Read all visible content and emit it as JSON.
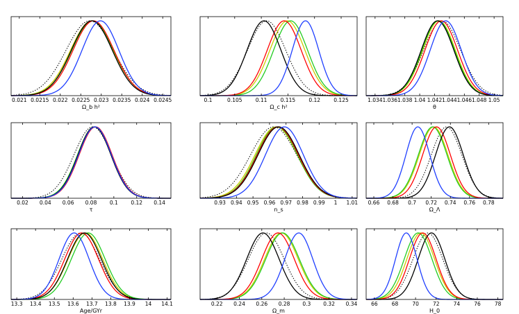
{
  "colors": {
    "blue": "#1f3fff",
    "black": "#000000",
    "red": "#ff0000",
    "green": "#22cc22",
    "yellow": "#cccc00",
    "dotted": "#000000"
  },
  "chart_data": [
    {
      "type": "line",
      "xlabel": "Ω_b h²",
      "xlim": [
        0.0208,
        0.0247
      ],
      "xticks": [
        0.021,
        0.0215,
        0.022,
        0.0225,
        0.023,
        0.0235,
        0.024,
        0.0245
      ],
      "tick_labels": [
        "0.021",
        "0.0215",
        "0.022",
        "0.0225",
        "0.023",
        "0.0235",
        "0.024",
        "0.0245"
      ],
      "series": [
        {
          "name": "blue",
          "mu": 0.02298,
          "sigma": 0.00045
        },
        {
          "name": "black",
          "mu": 0.02277,
          "sigma": 0.0005
        },
        {
          "name": "red",
          "mu": 0.02281,
          "sigma": 0.0005
        },
        {
          "name": "green",
          "mu": 0.02279,
          "sigma": 0.00051
        },
        {
          "name": "yellow",
          "mu": 0.02277,
          "sigma": 0.00052
        },
        {
          "name": "dotted",
          "mu": 0.02272,
          "sigma": 0.00058
        }
      ]
    },
    {
      "type": "line",
      "xlabel": "Ω_c h²",
      "xlim": [
        0.0985,
        0.128
      ],
      "xticks": [
        0.1,
        0.105,
        0.11,
        0.115,
        0.12,
        0.125
      ],
      "tick_labels": [
        "0.1",
        "0.105",
        "0.11",
        "0.115",
        "0.12",
        "0.125"
      ],
      "series": [
        {
          "name": "blue",
          "mu": 0.1183,
          "sigma": 0.0025
        },
        {
          "name": "black",
          "mu": 0.1105,
          "sigma": 0.0032
        },
        {
          "name": "red",
          "mu": 0.1143,
          "sigma": 0.0032
        },
        {
          "name": "green",
          "mu": 0.1155,
          "sigma": 0.0032
        },
        {
          "name": "yellow",
          "mu": 0.1149,
          "sigma": 0.0033
        },
        {
          "name": "dotted",
          "mu": 0.111,
          "sigma": 0.0036
        }
      ]
    },
    {
      "type": "line",
      "xlabel": "θ",
      "xlim": [
        1.0328,
        1.0512
      ],
      "xticks": [
        1.034,
        1.036,
        1.038,
        1.04,
        1.042,
        1.044,
        1.046,
        1.048,
        1.05
      ],
      "tick_labels": [
        "1.034",
        "1.036",
        "1.038",
        "1.04",
        "1.042",
        "1.044",
        "1.046",
        "1.048",
        "1.05"
      ],
      "series": [
        {
          "name": "blue",
          "mu": 1.0435,
          "sigma": 0.0021
        },
        {
          "name": "black",
          "mu": 1.0424,
          "sigma": 0.0022
        },
        {
          "name": "red",
          "mu": 1.0429,
          "sigma": 0.0022
        },
        {
          "name": "green",
          "mu": 1.0425,
          "sigma": 0.0022
        },
        {
          "name": "yellow",
          "mu": 1.0426,
          "sigma": 0.0022
        },
        {
          "name": "dotted",
          "mu": 1.043,
          "sigma": 0.0025
        }
      ]
    },
    {
      "type": "line",
      "xlabel": "τ",
      "xlim": [
        0.01,
        0.15
      ],
      "xticks": [
        0.02,
        0.04,
        0.06,
        0.08,
        0.1,
        0.12,
        0.14
      ],
      "tick_labels": [
        "0.02",
        "0.04",
        "0.06",
        "0.08",
        "0.1",
        "0.12",
        "0.14"
      ],
      "series": [
        {
          "name": "blue",
          "mu": 0.0835,
          "sigma": 0.0145
        },
        {
          "name": "black",
          "mu": 0.083,
          "sigma": 0.0145
        },
        {
          "name": "red",
          "mu": 0.084,
          "sigma": 0.0145
        },
        {
          "name": "green",
          "mu": 0.083,
          "sigma": 0.0148
        },
        {
          "name": "yellow",
          "mu": 0.083,
          "sigma": 0.0148
        },
        {
          "name": "dotted",
          "mu": 0.0815,
          "sigma": 0.0165
        }
      ]
    },
    {
      "type": "line",
      "xlabel": "n_s",
      "xlim": [
        0.918,
        1.013
      ],
      "xticks": [
        0.93,
        0.94,
        0.95,
        0.96,
        0.97,
        0.98,
        0.99,
        1,
        1.01
      ],
      "tick_labels": [
        "0.93",
        "0.94",
        "0.95",
        "0.96",
        "0.97",
        "0.98",
        "0.99",
        "1",
        "1.01"
      ],
      "series": [
        {
          "name": "blue",
          "mu": 0.969,
          "sigma": 0.0115
        },
        {
          "name": "black",
          "mu": 0.9655,
          "sigma": 0.0125
        },
        {
          "name": "red",
          "mu": 0.965,
          "sigma": 0.0125
        },
        {
          "name": "green",
          "mu": 0.9645,
          "sigma": 0.0125
        },
        {
          "name": "yellow",
          "mu": 0.964,
          "sigma": 0.0128
        },
        {
          "name": "dotted",
          "mu": 0.9625,
          "sigma": 0.014
        }
      ]
    },
    {
      "type": "line",
      "xlabel": "Ω_Λ",
      "xlim": [
        0.652,
        0.795
      ],
      "xticks": [
        0.66,
        0.68,
        0.7,
        0.72,
        0.74,
        0.76,
        0.78
      ],
      "tick_labels": [
        "0.66",
        "0.68",
        "0.7",
        "0.72",
        "0.74",
        "0.76",
        "0.78"
      ],
      "series": [
        {
          "name": "blue",
          "mu": 0.706,
          "sigma": 0.0125
        },
        {
          "name": "black",
          "mu": 0.739,
          "sigma": 0.0145
        },
        {
          "name": "red",
          "mu": 0.7255,
          "sigma": 0.0145
        },
        {
          "name": "green",
          "mu": 0.7215,
          "sigma": 0.015
        },
        {
          "name": "yellow",
          "mu": 0.7225,
          "sigma": 0.015
        },
        {
          "name": "dotted",
          "mu": 0.736,
          "sigma": 0.016
        }
      ]
    },
    {
      "type": "line",
      "xlabel": "Age/GYr",
      "xlim": [
        13.27,
        14.12
      ],
      "xticks": [
        13.3,
        13.4,
        13.5,
        13.6,
        13.7,
        13.8,
        13.9,
        14,
        14.1
      ],
      "tick_labels": [
        "13.3",
        "13.4",
        "13.5",
        "13.6",
        "13.7",
        "13.8",
        "13.9",
        "14",
        "14.1"
      ],
      "series": [
        {
          "name": "blue",
          "mu": 13.605,
          "sigma": 0.08
        },
        {
          "name": "black",
          "mu": 13.66,
          "sigma": 0.09
        },
        {
          "name": "red",
          "mu": 13.645,
          "sigma": 0.09
        },
        {
          "name": "green",
          "mu": 13.68,
          "sigma": 0.09
        },
        {
          "name": "yellow",
          "mu": 13.665,
          "sigma": 0.092
        },
        {
          "name": "dotted",
          "mu": 13.64,
          "sigma": 0.1
        }
      ]
    },
    {
      "type": "line",
      "xlabel": "Ω_m",
      "xlim": [
        0.205,
        0.345
      ],
      "xticks": [
        0.22,
        0.24,
        0.26,
        0.28,
        0.3,
        0.32,
        0.34
      ],
      "tick_labels": [
        "0.22",
        "0.24",
        "0.26",
        "0.28",
        "0.3",
        "0.32",
        "0.34"
      ],
      "series": [
        {
          "name": "blue",
          "mu": 0.293,
          "sigma": 0.0125
        },
        {
          "name": "black",
          "mu": 0.261,
          "sigma": 0.0145
        },
        {
          "name": "red",
          "mu": 0.2745,
          "sigma": 0.0145
        },
        {
          "name": "green",
          "mu": 0.2785,
          "sigma": 0.015
        },
        {
          "name": "yellow",
          "mu": 0.2775,
          "sigma": 0.015
        },
        {
          "name": "dotted",
          "mu": 0.264,
          "sigma": 0.016
        }
      ]
    },
    {
      "type": "line",
      "xlabel": "H_0",
      "xlim": [
        65.2,
        78.5
      ],
      "xticks": [
        66,
        68,
        70,
        72,
        74,
        76,
        78
      ],
      "tick_labels": [
        "66",
        "68",
        "70",
        "72",
        "74",
        "76",
        "78"
      ],
      "series": [
        {
          "name": "blue",
          "mu": 69.1,
          "sigma": 1.05
        },
        {
          "name": "black",
          "mu": 71.55,
          "sigma": 1.3
        },
        {
          "name": "red",
          "mu": 70.7,
          "sigma": 1.3
        },
        {
          "name": "green",
          "mu": 70.25,
          "sigma": 1.35
        },
        {
          "name": "yellow",
          "mu": 70.5,
          "sigma": 1.35
        },
        {
          "name": "dotted",
          "mu": 71.2,
          "sigma": 1.45
        }
      ]
    }
  ]
}
